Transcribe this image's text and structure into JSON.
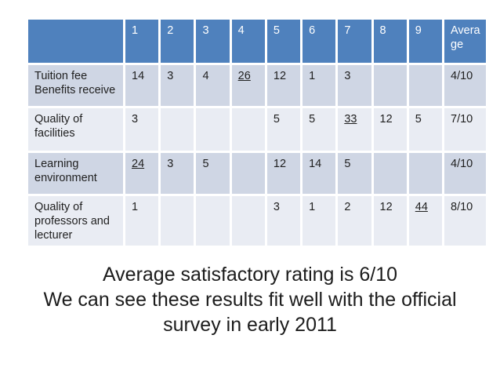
{
  "table": {
    "corner_label": "",
    "columns": [
      "1",
      "2",
      "3",
      "4",
      "5",
      "6",
      "7",
      "8",
      "9",
      "Average"
    ],
    "rows": [
      {
        "label": "Tuition fee Benefits receive",
        "values": [
          "14",
          "3",
          "4",
          "26",
          "12",
          "1",
          "3",
          "",
          "",
          "4/10"
        ],
        "max_column": "4"
      },
      {
        "label": "Quality of facilities",
        "values": [
          "3",
          "",
          "",
          "",
          "5",
          "5",
          "33",
          "12",
          "5",
          "7/10"
        ],
        "max_column": "7"
      },
      {
        "label": "Learning environment",
        "values": [
          "24",
          "3",
          "5",
          "",
          "12",
          "14",
          "5",
          "",
          "",
          "4/10"
        ],
        "max_column": "1"
      },
      {
        "label": "Quality of professors and lecturer",
        "values": [
          "1",
          "",
          "",
          "",
          "3",
          "1",
          "2",
          "12",
          "44",
          "8/10"
        ],
        "max_column": "9"
      }
    ]
  },
  "caption": {
    "lines": [
      "Average satisfactory rating is 6/10",
      "We can see these results fit well with the official",
      "survey in early 2011"
    ]
  },
  "colors": {
    "header_bg": "#4F81BD",
    "header_text": "#FFFFFF",
    "band_dark": "#CFD6E4",
    "band_light": "#E9ECF3",
    "grid_line": "#FFFFFF",
    "body_text": "#1F1F1F",
    "background": "#FFFFFF"
  }
}
